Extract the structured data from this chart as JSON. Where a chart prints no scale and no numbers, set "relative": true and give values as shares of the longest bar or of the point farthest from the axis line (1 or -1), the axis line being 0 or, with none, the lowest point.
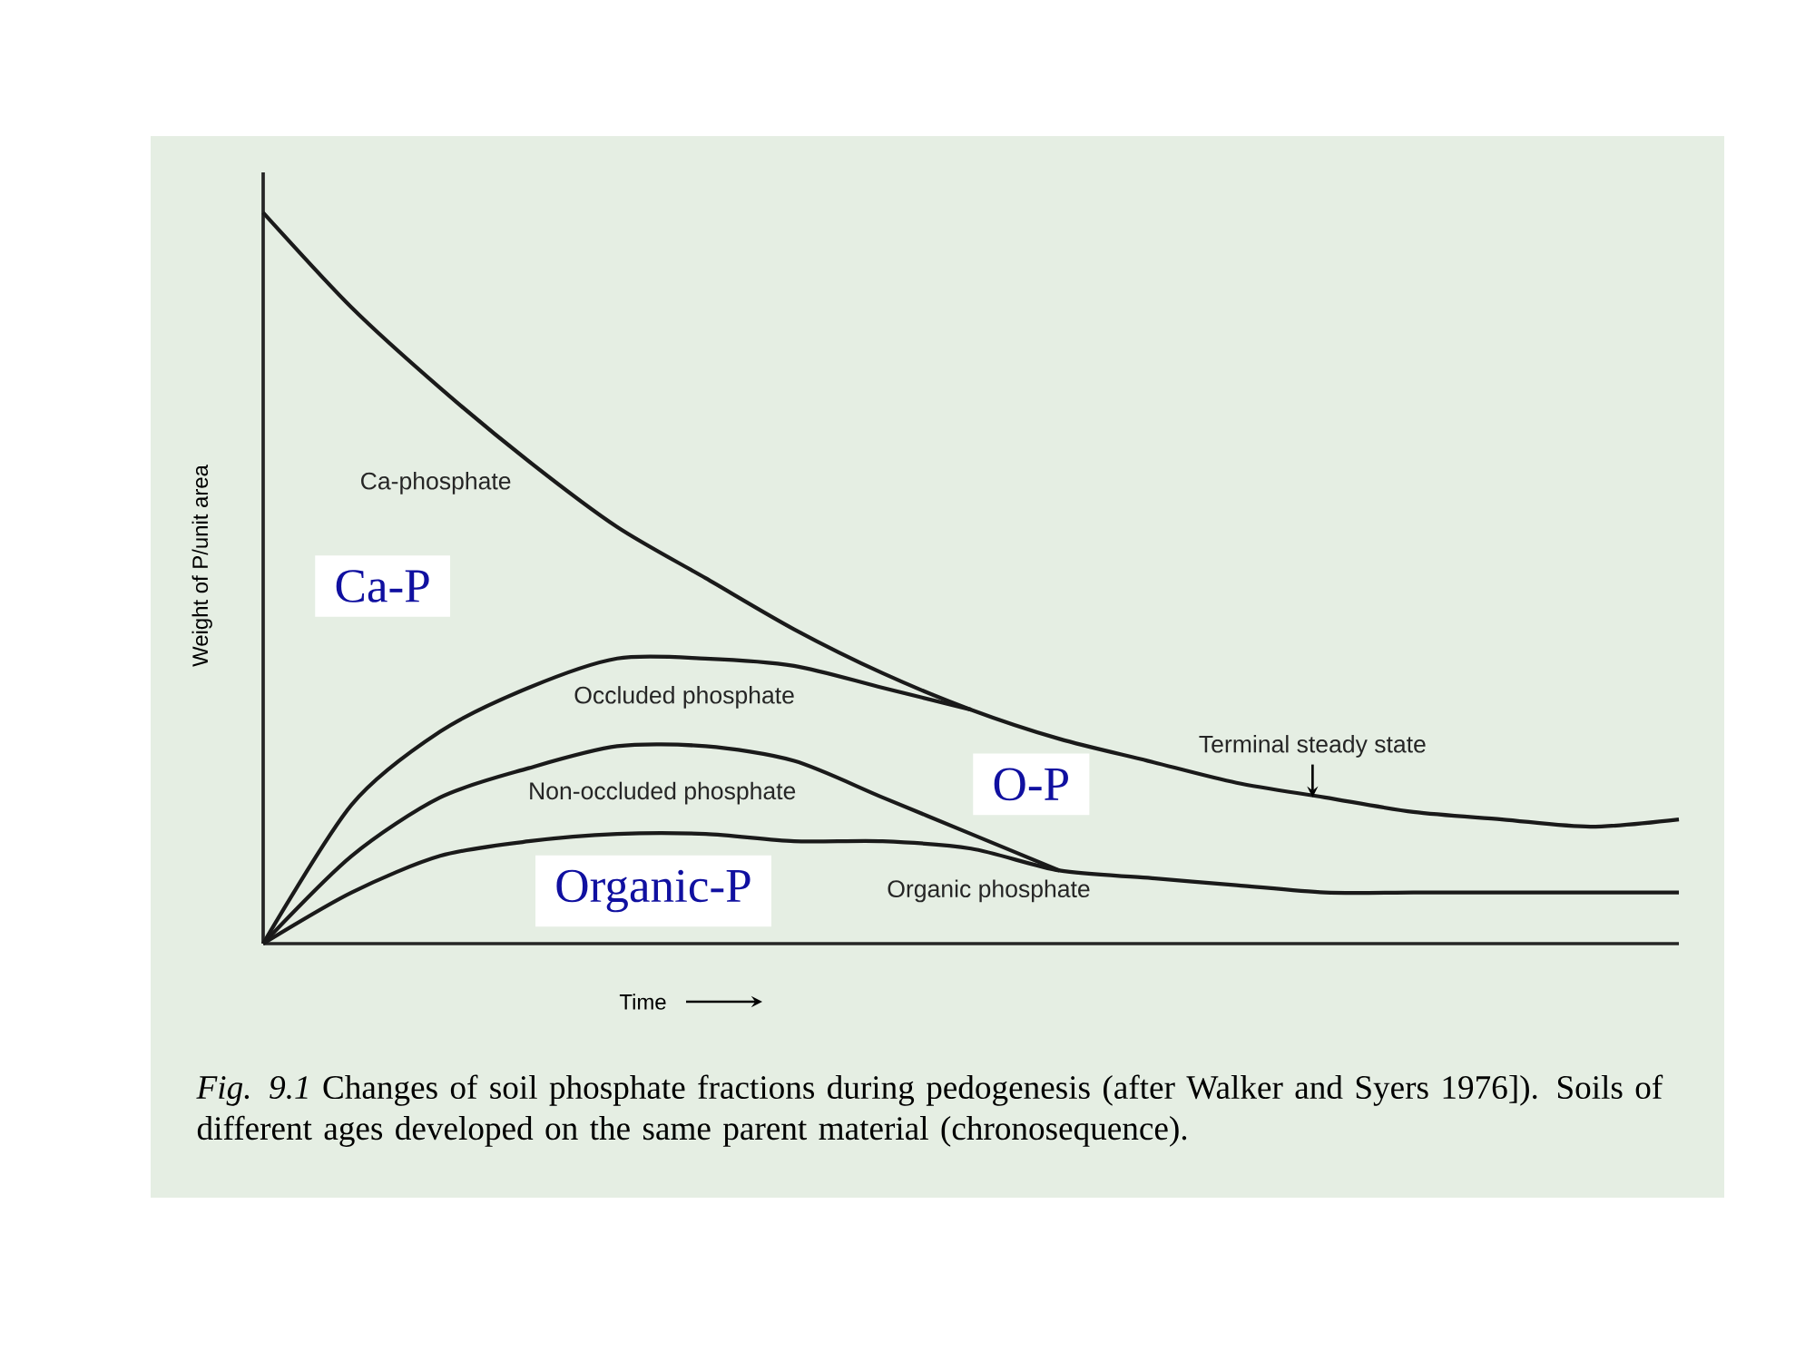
{
  "chart_data": {
    "type": "line",
    "relative": true,
    "ylabel": "Weight of P/unit area",
    "xlabel": "Time",
    "categories": [
      null,
      null,
      null,
      null,
      null,
      null,
      null,
      null,
      null,
      null,
      null,
      null,
      null,
      null,
      null,
      null,
      null
    ],
    "series": [
      {
        "color": "#1a1a1a",
        "values": [
          1.0,
          0.87,
          0.76,
          0.66,
          0.57,
          0.5,
          0.43,
          0.37,
          0.32,
          0.28,
          0.25,
          0.22,
          0.2,
          0.18,
          0.17,
          0.16,
          0.17
        ]
      },
      {
        "color": "#1a1a1a",
        "values": [
          0,
          0.19,
          0.29,
          0.35,
          0.39,
          0.39,
          0.38,
          0.35,
          0.32,
          null,
          null,
          null,
          null,
          null,
          null,
          null,
          null
        ]
      },
      {
        "color": "#1a1a1a",
        "values": [
          0,
          0.12,
          0.2,
          0.24,
          0.27,
          0.27,
          0.25,
          0.2,
          0.15,
          0.1,
          null,
          null,
          null,
          null,
          null,
          null,
          null
        ]
      },
      {
        "color": "#1a1a1a",
        "values": [
          0,
          0.07,
          0.12,
          0.14,
          0.15,
          0.15,
          0.14,
          0.14,
          0.13,
          0.1,
          0.09,
          0.08,
          0.07,
          0.07,
          0.07,
          0.07,
          0.07
        ]
      }
    ],
    "annotations": [
      "*Fig. 9.1* Changes of soil phosphate fractions during pedogenesis (after Walker and Syers 1976]). Soils of different ages developed on the same parent material (chronosequence).",
      "Ca-phosphate",
      "Occluded phosphate",
      "Non-occluded phosphate",
      "Organic phosphate",
      "Terminal steady state",
      "Ca-P",
      "O-P",
      "Organic-P"
    ]
  }
}
